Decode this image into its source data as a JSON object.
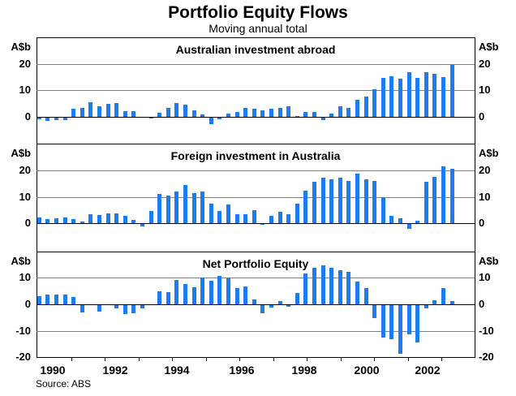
{
  "title": "Portfolio Equity Flows",
  "subtitle": "Moving annual total",
  "source": "Source: ABS",
  "axis_unit_label": "A$b",
  "colors": {
    "bar": "#1b7cf0",
    "grid": "#808080",
    "axis": "#000000"
  },
  "x_axis": {
    "labels": [
      "1990",
      "1992",
      "1994",
      "1996",
      "1998",
      "2000",
      "2002"
    ]
  },
  "chart_data": [
    {
      "type": "bar",
      "title": "Australian investment abroad",
      "ylabel": "A$b",
      "ylim": [
        -10,
        30
      ],
      "yticks": [
        20,
        10,
        0
      ],
      "grid": true,
      "frequency": "quarterly",
      "x_range": [
        "1990Q1",
        "2002Q1"
      ],
      "values": [
        -0.7,
        -1.2,
        -1.0,
        -0.8,
        3.1,
        3.3,
        5.5,
        3.9,
        4.9,
        5.1,
        2.3,
        2.1,
        0.0,
        -0.3,
        1.7,
        3.3,
        5.3,
        4.6,
        2.5,
        0.8,
        -2.3,
        -0.5,
        1.2,
        1.9,
        3.4,
        3.1,
        2.6,
        3.0,
        3.3,
        3.9,
        0.3,
        1.8,
        1.9,
        -0.9,
        1.3,
        3.9,
        3.5,
        6.4,
        7.8,
        10.5,
        14.6,
        15.3,
        14.4,
        17.0,
        14.8,
        16.8,
        16.2,
        15.1,
        19.6
      ]
    },
    {
      "type": "bar",
      "title": "Foreign investment in Australia",
      "ylabel": "A$b",
      "ylim": [
        -10,
        30
      ],
      "yticks": [
        20,
        10,
        0
      ],
      "grid": true,
      "frequency": "quarterly",
      "x_range": [
        "1990Q1",
        "2002Q1"
      ],
      "values": [
        2.3,
        1.5,
        2.0,
        2.2,
        1.6,
        0.8,
        3.4,
        3.3,
        3.8,
        3.7,
        2.8,
        1.3,
        -0.7,
        4.7,
        11.0,
        10.6,
        12.2,
        14.5,
        11.4,
        12.0,
        7.5,
        4.8,
        7.2,
        3.6,
        3.6,
        4.9,
        -0.3,
        2.8,
        4.5,
        3.6,
        7.6,
        12.3,
        15.6,
        17.4,
        16.8,
        17.3,
        15.9,
        18.7,
        16.7,
        16.1,
        9.9,
        2.8,
        2.1,
        -1.8,
        1.0,
        15.6,
        17.7,
        21.5,
        20.5
      ]
    },
    {
      "type": "bar",
      "title": "Net Portfolio Equity",
      "ylabel": "A$b",
      "ylim": [
        -20,
        20
      ],
      "yticks": [
        10,
        0,
        -10,
        -20
      ],
      "grid": true,
      "frequency": "quarterly",
      "x_range": [
        "1990Q1",
        "2002Q1"
      ],
      "values": [
        3.1,
        3.6,
        3.6,
        3.8,
        2.8,
        -2.6,
        0.0,
        -2.3,
        0.0,
        -1.2,
        -3.4,
        -2.9,
        -1.1,
        0.0,
        5.0,
        4.7,
        9.3,
        7.7,
        6.6,
        10.2,
        9.0,
        10.7,
        9.7,
        6.1,
        6.8,
        2.0,
        -2.9,
        -0.8,
        1.3,
        -0.5,
        4.3,
        11.7,
        13.9,
        14.7,
        13.9,
        12.8,
        12.4,
        8.7,
        6.1,
        -4.9,
        -12.2,
        -12.8,
        -18.4,
        -11.1,
        -14.0,
        -1.3,
        1.7,
        6.1,
        1.3
      ]
    }
  ]
}
